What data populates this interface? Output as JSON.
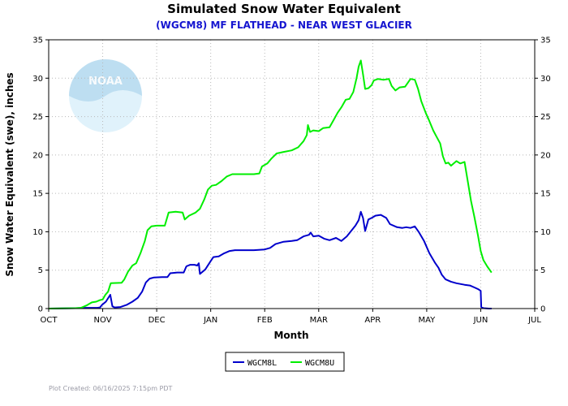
{
  "chart_data": {
    "type": "line",
    "title": "Simulated Snow Water Equivalent",
    "subtitle": "(WGCM8) MF FLATHEAD - NEAR WEST GLACIER",
    "xlabel": "Month",
    "ylabel": "Snow Water Equivalent (swe),  inches",
    "x_categories": [
      "OCT",
      "NOV",
      "DEC",
      "JAN",
      "FEB",
      "MAR",
      "APR",
      "MAY",
      "JUN",
      "JUL"
    ],
    "ylim": [
      0,
      35
    ],
    "yticks": [
      0,
      5,
      10,
      15,
      20,
      25,
      30,
      35
    ],
    "grid": true,
    "legend_position": "bottom-center",
    "watermark": "NOAA",
    "series": [
      {
        "name": "WGCM8L",
        "color": "#0000cc",
        "points": [
          [
            0,
            0
          ],
          [
            0.5,
            0.05
          ],
          [
            0.65,
            0.1
          ],
          [
            0.9,
            0.1
          ],
          [
            0.95,
            0.15
          ],
          [
            0.99,
            0.5
          ],
          [
            1.06,
            0.9
          ],
          [
            1.14,
            1.8
          ],
          [
            1.18,
            0.3
          ],
          [
            1.22,
            0.15
          ],
          [
            1.33,
            0.2
          ],
          [
            1.45,
            0.5
          ],
          [
            1.55,
            0.9
          ],
          [
            1.65,
            1.4
          ],
          [
            1.73,
            2.2
          ],
          [
            1.8,
            3.4
          ],
          [
            1.87,
            3.9
          ],
          [
            1.95,
            4.05
          ],
          [
            2.1,
            4.1
          ],
          [
            2.2,
            4.1
          ],
          [
            2.25,
            4.6
          ],
          [
            2.38,
            4.7
          ],
          [
            2.5,
            4.7
          ],
          [
            2.55,
            5.5
          ],
          [
            2.62,
            5.7
          ],
          [
            2.7,
            5.7
          ],
          [
            2.75,
            5.6
          ],
          [
            2.78,
            5.9
          ],
          [
            2.8,
            4.5
          ],
          [
            2.9,
            5.1
          ],
          [
            3.0,
            6.2
          ],
          [
            3.05,
            6.7
          ],
          [
            3.15,
            6.8
          ],
          [
            3.25,
            7.2
          ],
          [
            3.35,
            7.5
          ],
          [
            3.45,
            7.6
          ],
          [
            3.6,
            7.6
          ],
          [
            3.8,
            7.6
          ],
          [
            4.0,
            7.7
          ],
          [
            4.1,
            7.9
          ],
          [
            4.2,
            8.4
          ],
          [
            4.35,
            8.7
          ],
          [
            4.5,
            8.8
          ],
          [
            4.6,
            8.9
          ],
          [
            4.72,
            9.4
          ],
          [
            4.82,
            9.6
          ],
          [
            4.85,
            9.9
          ],
          [
            4.9,
            9.4
          ],
          [
            5.0,
            9.5
          ],
          [
            5.1,
            9.1
          ],
          [
            5.2,
            8.9
          ],
          [
            5.32,
            9.2
          ],
          [
            5.42,
            8.8
          ],
          [
            5.52,
            9.4
          ],
          [
            5.6,
            10.1
          ],
          [
            5.68,
            10.8
          ],
          [
            5.74,
            11.5
          ],
          [
            5.78,
            12.6
          ],
          [
            5.82,
            11.8
          ],
          [
            5.86,
            10.1
          ],
          [
            5.92,
            11.6
          ],
          [
            5.98,
            11.8
          ],
          [
            6.05,
            12.1
          ],
          [
            6.15,
            12.2
          ],
          [
            6.25,
            11.8
          ],
          [
            6.32,
            11.0
          ],
          [
            6.45,
            10.6
          ],
          [
            6.55,
            10.5
          ],
          [
            6.62,
            10.6
          ],
          [
            6.7,
            10.5
          ],
          [
            6.78,
            10.7
          ],
          [
            6.85,
            10.0
          ],
          [
            6.95,
            8.8
          ],
          [
            7.05,
            7.2
          ],
          [
            7.15,
            6.0
          ],
          [
            7.22,
            5.3
          ],
          [
            7.28,
            4.4
          ],
          [
            7.35,
            3.8
          ],
          [
            7.45,
            3.5
          ],
          [
            7.55,
            3.3
          ],
          [
            7.7,
            3.1
          ],
          [
            7.8,
            3.0
          ],
          [
            7.9,
            2.7
          ],
          [
            7.96,
            2.5
          ],
          [
            8.0,
            2.3
          ],
          [
            8.01,
            0.2
          ],
          [
            8.05,
            0.05
          ],
          [
            8.15,
            0
          ],
          [
            8.2,
            0
          ]
        ]
      },
      {
        "name": "WGCM8U",
        "color": "#00ee00",
        "points": [
          [
            0,
            0
          ],
          [
            0.5,
            0.05
          ],
          [
            0.6,
            0.1
          ],
          [
            0.7,
            0.4
          ],
          [
            0.75,
            0.6
          ],
          [
            0.8,
            0.8
          ],
          [
            0.88,
            0.9
          ],
          [
            0.95,
            1.1
          ],
          [
            1.0,
            1.2
          ],
          [
            1.05,
            1.8
          ],
          [
            1.1,
            2.2
          ],
          [
            1.15,
            3.3
          ],
          [
            1.35,
            3.35
          ],
          [
            1.4,
            3.8
          ],
          [
            1.47,
            4.8
          ],
          [
            1.55,
            5.6
          ],
          [
            1.62,
            5.9
          ],
          [
            1.7,
            7.2
          ],
          [
            1.78,
            8.8
          ],
          [
            1.83,
            10.2
          ],
          [
            1.9,
            10.7
          ],
          [
            2.0,
            10.8
          ],
          [
            2.15,
            10.8
          ],
          [
            2.22,
            12.5
          ],
          [
            2.35,
            12.6
          ],
          [
            2.48,
            12.5
          ],
          [
            2.52,
            11.6
          ],
          [
            2.6,
            12.1
          ],
          [
            2.72,
            12.5
          ],
          [
            2.8,
            13.0
          ],
          [
            2.88,
            14.2
          ],
          [
            2.95,
            15.5
          ],
          [
            3.02,
            16.0
          ],
          [
            3.1,
            16.1
          ],
          [
            3.2,
            16.6
          ],
          [
            3.3,
            17.2
          ],
          [
            3.4,
            17.5
          ],
          [
            3.55,
            17.5
          ],
          [
            3.8,
            17.5
          ],
          [
            3.9,
            17.6
          ],
          [
            3.95,
            18.5
          ],
          [
            4.05,
            18.9
          ],
          [
            4.12,
            19.5
          ],
          [
            4.22,
            20.2
          ],
          [
            4.35,
            20.4
          ],
          [
            4.5,
            20.6
          ],
          [
            4.62,
            21.0
          ],
          [
            4.72,
            21.8
          ],
          [
            4.78,
            22.6
          ],
          [
            4.8,
            23.9
          ],
          [
            4.84,
            23.0
          ],
          [
            4.9,
            23.2
          ],
          [
            5.0,
            23.1
          ],
          [
            5.08,
            23.5
          ],
          [
            5.2,
            23.6
          ],
          [
            5.28,
            24.6
          ],
          [
            5.35,
            25.5
          ],
          [
            5.42,
            26.2
          ],
          [
            5.5,
            27.2
          ],
          [
            5.57,
            27.3
          ],
          [
            5.64,
            28.2
          ],
          [
            5.7,
            30.0
          ],
          [
            5.74,
            31.5
          ],
          [
            5.78,
            32.3
          ],
          [
            5.82,
            30.5
          ],
          [
            5.86,
            28.6
          ],
          [
            5.92,
            28.7
          ],
          [
            5.98,
            29.1
          ],
          [
            6.02,
            29.7
          ],
          [
            6.1,
            29.9
          ],
          [
            6.2,
            29.8
          ],
          [
            6.3,
            29.9
          ],
          [
            6.35,
            29.0
          ],
          [
            6.42,
            28.4
          ],
          [
            6.5,
            28.8
          ],
          [
            6.6,
            28.9
          ],
          [
            6.7,
            29.9
          ],
          [
            6.78,
            29.8
          ],
          [
            6.84,
            28.6
          ],
          [
            6.9,
            27.0
          ],
          [
            6.98,
            25.5
          ],
          [
            7.05,
            24.4
          ],
          [
            7.12,
            23.2
          ],
          [
            7.18,
            22.4
          ],
          [
            7.25,
            21.5
          ],
          [
            7.3,
            19.8
          ],
          [
            7.35,
            18.9
          ],
          [
            7.4,
            19.0
          ],
          [
            7.45,
            18.6
          ],
          [
            7.55,
            19.2
          ],
          [
            7.62,
            18.9
          ],
          [
            7.7,
            19.1
          ],
          [
            7.75,
            17.0
          ],
          [
            7.82,
            14.0
          ],
          [
            7.88,
            12.0
          ],
          [
            7.95,
            9.5
          ],
          [
            8.0,
            7.5
          ],
          [
            8.05,
            6.3
          ],
          [
            8.12,
            5.5
          ],
          [
            8.18,
            4.9
          ],
          [
            8.2,
            4.7
          ]
        ]
      }
    ],
    "footer": "Plot Created:  06/16/2025 7:15pm PDT"
  }
}
